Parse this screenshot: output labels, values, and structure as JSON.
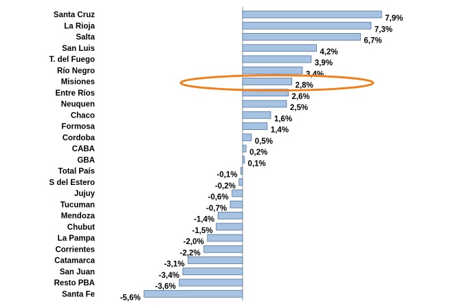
{
  "chart_data": {
    "type": "bar",
    "orientation": "horizontal",
    "categories": [
      "Santa Cruz",
      "La Rioja",
      "Salta",
      "San Luis",
      "T. del Fuego",
      "Río Negro",
      "Misiones",
      "Entre Ríos",
      "Neuquen",
      "Chaco",
      "Formosa",
      "Cordoba",
      "CABA",
      "GBA",
      "Total País",
      "S del Estero",
      "Jujuy",
      "Tucuman",
      "Mendoza",
      "Chubut",
      "La Pampa",
      "Corrientes",
      "Catamarca",
      "San Juan",
      "Resto PBA",
      "Santa Fe"
    ],
    "values": [
      7.9,
      7.3,
      6.7,
      4.2,
      3.9,
      3.4,
      2.8,
      2.6,
      2.5,
      1.6,
      1.4,
      0.5,
      0.2,
      0.1,
      -0.1,
      -0.2,
      -0.6,
      -0.7,
      -1.4,
      -1.5,
      -2.0,
      -2.2,
      -3.1,
      -3.4,
      -3.6,
      -5.6
    ],
    "value_labels": [
      "7,9%",
      "7,3%",
      "6,7%",
      "4,2%",
      "3,9%",
      "3,4%",
      "2,8%",
      "2,6%",
      "2,5%",
      "1,6%",
      "1,4%",
      "0,5%",
      "0,2%",
      "0,1%",
      "-0,1%",
      "-0,2%",
      "-0,6%",
      "-0,7%",
      "-1,4%",
      "-1,5%",
      "-2,0%",
      "-2,2%",
      "-3,1%",
      "-3,4%",
      "-3,6%",
      "-5,6%"
    ],
    "title": "",
    "xlabel": "",
    "ylabel": "",
    "xlim": [
      -5.6,
      7.9
    ],
    "grid": false,
    "legend": "none",
    "highlighted_category": "Misiones",
    "colors": {
      "bar_fill": "#a7c3e4",
      "bar_stroke": "#4f6f98",
      "highlight": "#f07f1e"
    }
  }
}
